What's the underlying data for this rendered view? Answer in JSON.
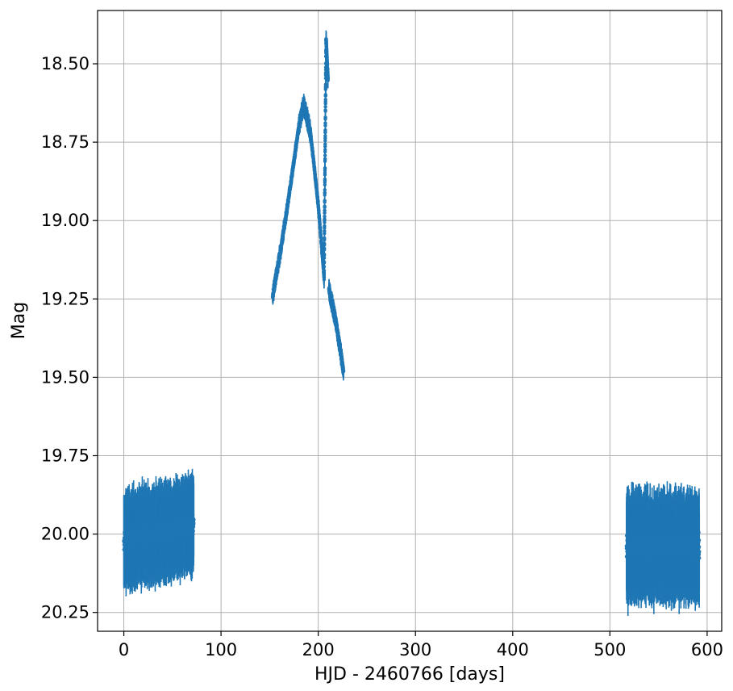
{
  "chart_data": {
    "type": "scatter",
    "xlabel": "HJD - 2460766 [days]",
    "ylabel": "Mag",
    "xlim": [
      -27,
      615
    ],
    "ylim": [
      20.31,
      18.33
    ],
    "y_inverted": true,
    "grid": true,
    "x_ticks": [
      0,
      100,
      200,
      300,
      400,
      500,
      600
    ],
    "x_tick_labels": [
      "0",
      "100",
      "200",
      "300",
      "400",
      "500",
      "600"
    ],
    "y_ticks": [
      18.5,
      18.75,
      19.0,
      19.25,
      19.5,
      19.75,
      20.0,
      20.25
    ],
    "y_tick_labels": [
      "18.50",
      "18.75",
      "19.00",
      "19.25",
      "19.50",
      "19.75",
      "20.00",
      "20.25"
    ],
    "series": [
      {
        "color": "#1f77b4",
        "marker": "point-with-errorbars",
        "segments": [
          {
            "x": [
              0,
              72
            ],
            "y_range": [
              19.81,
              20.14
            ],
            "center": [
              20.02,
              19.97
            ]
          },
          {
            "x": [
              153,
              185
            ],
            "trend": "rising",
            "y": [
              [
                153,
                19.24
              ],
              [
                160,
                19.12
              ],
              [
                170,
                18.92
              ],
              [
                180,
                18.7
              ],
              [
                185,
                18.63
              ]
            ]
          },
          {
            "x": [
              185,
              206
            ],
            "trend": "falling",
            "y": [
              [
                185,
                18.63
              ],
              [
                192,
                18.72
              ],
              [
                200,
                18.95
              ],
              [
                206,
                19.18
              ]
            ]
          },
          {
            "x": [
              206,
              210
            ],
            "trend": "spike",
            "y": [
              [
                206,
                19.18
              ],
              [
                208,
                18.42
              ],
              [
                210,
                18.55
              ],
              [
                211,
                19.22
              ]
            ]
          },
          {
            "x": [
              211,
              226
            ],
            "trend": "falling",
            "y": [
              [
                211,
                19.22
              ],
              [
                218,
                19.32
              ],
              [
                226,
                19.48
              ]
            ]
          },
          {
            "x": [
              517,
              592
            ],
            "y_range": [
              19.84,
              20.22
            ],
            "center": [
              20.04,
              20.04
            ]
          }
        ]
      }
    ]
  }
}
